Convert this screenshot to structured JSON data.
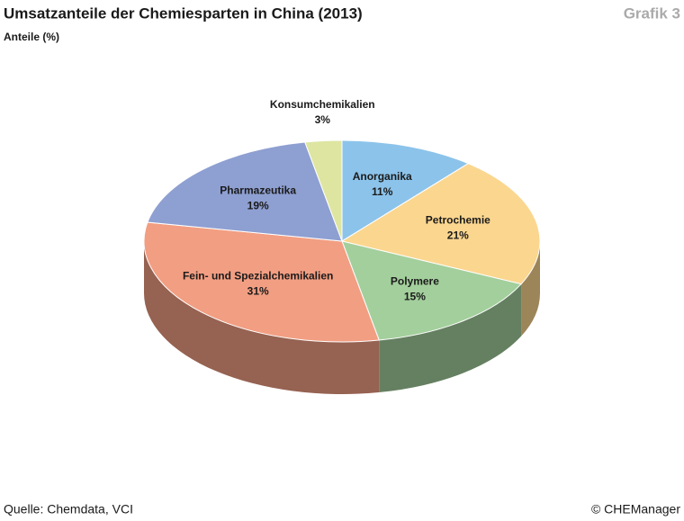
{
  "chart_data": {
    "type": "pie",
    "title": "Umsatzanteile der Chemiesparten in China (2013)",
    "subtitle": "Anteile (%)",
    "badge": "Grafik 3",
    "source": "Quelle: Chemdata, VCI",
    "credit": "© CHEManager",
    "categories": [
      "Anorganika",
      "Petrochemie",
      "Polymere",
      "Fein- und Spezialchemikalien",
      "Pharmazeutika",
      "Konsumchemikalien"
    ],
    "values": [
      11,
      21,
      15,
      31,
      19,
      3
    ],
    "value_labels": [
      "11%",
      "21%",
      "15%",
      "31%",
      "19%",
      "3%"
    ],
    "colors": [
      "#8cc3ea",
      "#fbd68f",
      "#a3cf9c",
      "#f29e82",
      "#8e9fd1",
      "#dde5a0"
    ]
  }
}
